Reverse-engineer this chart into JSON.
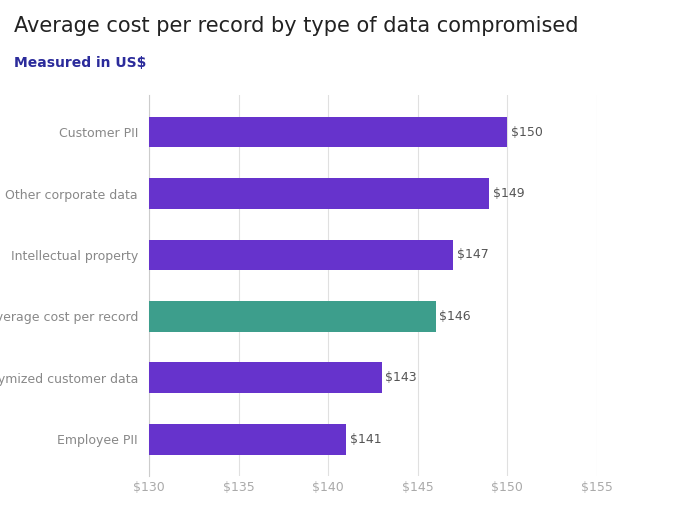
{
  "title": "Average cost per record by type of data compromised",
  "subtitle": "Measured in US$",
  "categories": [
    "Customer PII",
    "Other corporate data",
    "Intellectual property",
    "Average cost per record",
    "Anonymized customer data",
    "Employee PII"
  ],
  "values": [
    150,
    149,
    147,
    146,
    143,
    141
  ],
  "bar_colors": [
    "#6633cc",
    "#6633cc",
    "#6633cc",
    "#3d9e8c",
    "#6633cc",
    "#6633cc"
  ],
  "bar_labels": [
    "$150",
    "$149",
    "$147",
    "$146",
    "$143",
    "$141"
  ],
  "xlim": [
    130,
    155
  ],
  "xticks": [
    130,
    135,
    140,
    145,
    150,
    155
  ],
  "xtick_labels": [
    "$130",
    "$135",
    "$140",
    "$145",
    "$150",
    "$155"
  ],
  "title_fontsize": 15,
  "subtitle_fontsize": 10,
  "label_fontsize": 9,
  "bar_label_fontsize": 9,
  "tick_fontsize": 9,
  "background_color": "#ffffff",
  "title_color": "#222222",
  "subtitle_color": "#2b2b9b",
  "ylabel_color": "#888888",
  "xlabel_color": "#aaaaaa",
  "bar_height": 0.5,
  "grid_color": "#e0e0e0"
}
